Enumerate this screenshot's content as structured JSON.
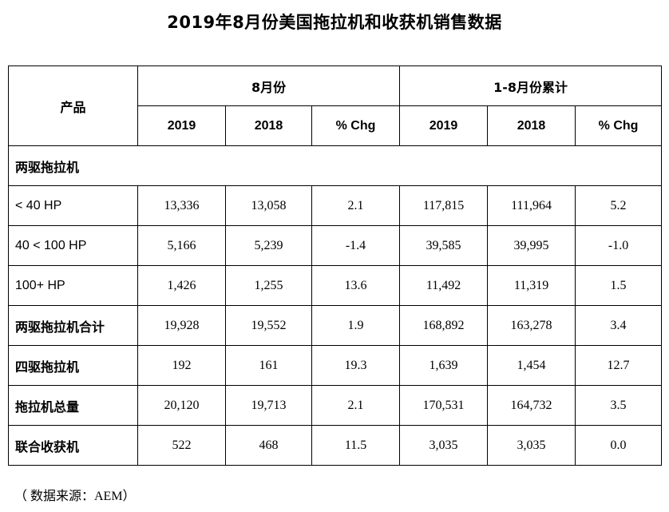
{
  "title": "2019年8月份美国拖拉机和收获机销售数据",
  "table": {
    "product_header": "产品",
    "group_month": "8月份",
    "group_ytd": "1-8月份累计",
    "col_labels": [
      "2019",
      "2018",
      "% Chg",
      "2019",
      "2018",
      "% Chg"
    ],
    "section_label": "两驱拖拉机",
    "rows": [
      {
        "label": "< 40 HP",
        "values": [
          "13,336",
          "13,058",
          "2.1",
          "117,815",
          "111,964",
          "5.2"
        ]
      },
      {
        "label": "40 < 100 HP",
        "values": [
          "5,166",
          "5,239",
          "-1.4",
          "39,585",
          "39,995",
          "-1.0"
        ]
      },
      {
        "label": "100+ HP",
        "values": [
          "1,426",
          "1,255",
          "13.6",
          "11,492",
          "11,319",
          "1.5"
        ]
      },
      {
        "label": "两驱拖拉机合计",
        "values": [
          "19,928",
          "19,552",
          "1.9",
          "168,892",
          "163,278",
          "3.4"
        ]
      },
      {
        "label": "四驱拖拉机",
        "values": [
          "192",
          "161",
          "19.3",
          "1,639",
          "1,454",
          "12.7"
        ]
      },
      {
        "label": "拖拉机总量",
        "values": [
          "20,120",
          "19,713",
          "2.1",
          "170,531",
          "164,732",
          "3.5"
        ]
      },
      {
        "label": "联合收获机",
        "values": [
          "522",
          "468",
          "11.5",
          "3,035",
          "3,035",
          "0.0"
        ]
      }
    ]
  },
  "source": "（ 数据来源：AEM）"
}
